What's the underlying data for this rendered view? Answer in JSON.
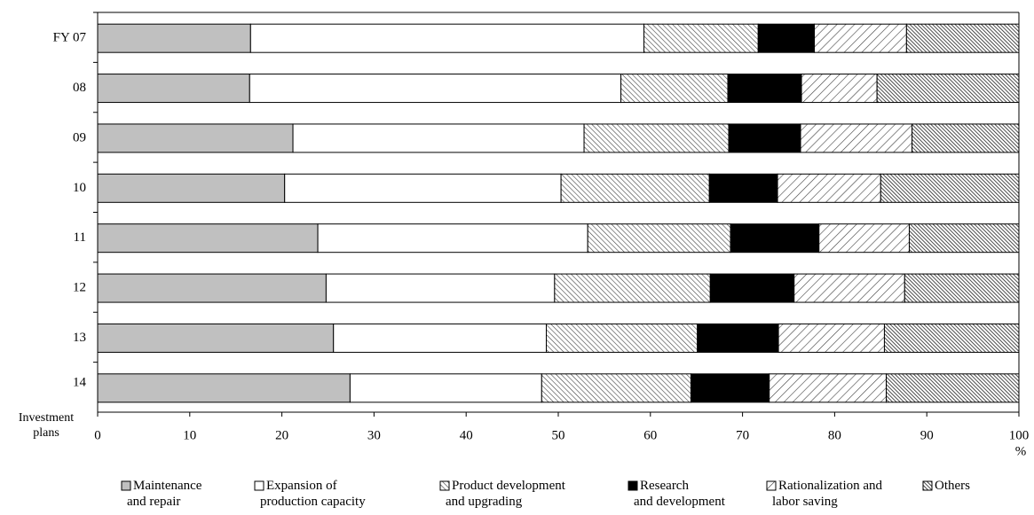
{
  "chart_data": {
    "type": "stacked-bar-horizontal",
    "categories": [
      "FY 07",
      "08",
      "09",
      "10",
      "11",
      "12",
      "13",
      "14"
    ],
    "last_category_note": "Investment plans",
    "x_unit": "%",
    "xlim": [
      0,
      100
    ],
    "xticks": [
      0,
      10,
      20,
      30,
      40,
      50,
      60,
      70,
      80,
      90,
      100
    ],
    "series": [
      {
        "name": "Maintenance and repair",
        "color": "#c0c0c0",
        "pattern": "solid",
        "values": [
          16.6,
          16.5,
          21.2,
          20.3,
          23.9,
          24.8,
          25.6,
          27.4
        ]
      },
      {
        "name": "Expansion of production capacity",
        "color": "#ffffff",
        "pattern": "solid",
        "values": [
          42.7,
          40.3,
          31.6,
          30.0,
          29.3,
          24.8,
          23.1,
          20.8
        ]
      },
      {
        "name": "Product development and upgrading",
        "color": "#404040",
        "pattern": "fine-back",
        "values": [
          12.4,
          11.6,
          15.7,
          16.1,
          15.5,
          16.9,
          16.4,
          16.2
        ]
      },
      {
        "name": "Research and development",
        "color": "#000000",
        "pattern": "solid",
        "values": [
          6.1,
          8.0,
          7.8,
          7.4,
          9.6,
          9.1,
          8.8,
          8.5
        ]
      },
      {
        "name": "Rationalization and labor saving",
        "color": "#404040",
        "pattern": "wide-forward",
        "values": [
          10.0,
          8.2,
          12.1,
          11.2,
          9.8,
          12.0,
          11.5,
          12.7
        ]
      },
      {
        "name": "Others",
        "color": "#202020",
        "pattern": "dense-back",
        "values": [
          12.2,
          15.4,
          11.6,
          15.0,
          11.9,
          12.4,
          14.6,
          14.4
        ]
      }
    ]
  }
}
